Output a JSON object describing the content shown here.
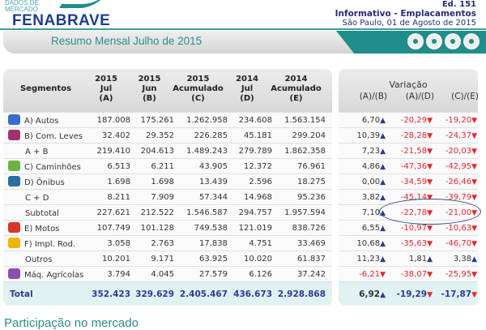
{
  "header": {
    "logo_small": "DADOS DE MERCADO",
    "logo": "FENABRAVE",
    "edition": "Ed. 151",
    "info": "Informativo - Emplacamentos",
    "date": "São Paulo, 01 de Agosto de 2015"
  },
  "band": {
    "title": "Resumo Mensal Julho de 2015"
  },
  "table": {
    "columns": [
      {
        "l1": "Segmentos"
      },
      {
        "l1": "2015",
        "l2": "Jul",
        "l3": "(A)"
      },
      {
        "l1": "2015",
        "l2": "Jun",
        "l3": "(B)"
      },
      {
        "l1": "2015",
        "l2": "Acumulado",
        "l3": "(C)"
      },
      {
        "l1": "2014",
        "l2": "Jul",
        "l3": "(D)"
      },
      {
        "l1": "2014",
        "l2": "Acumulado",
        "l3": "(E)"
      }
    ],
    "rows": [
      {
        "seg": "A) Autos",
        "icon": "car-icon",
        "color": "#3a6ec8",
        "v": [
          "187.008",
          "175.261",
          "1.262.958",
          "234.608",
          "1.563.154"
        ]
      },
      {
        "seg": "B) Com. Leves",
        "icon": "van-icon",
        "color": "#a0336e",
        "v": [
          "32.402",
          "29.352",
          "226.285",
          "45.181",
          "299.204"
        ]
      },
      {
        "seg": "A + B",
        "v": [
          "219.410",
          "204.613",
          "1.489.243",
          "279.789",
          "1.862.358"
        ]
      },
      {
        "seg": "C) Caminhões",
        "icon": "truck-icon",
        "color": "#6db33f",
        "v": [
          "6.513",
          "6.211",
          "43.905",
          "12.372",
          "76.961"
        ]
      },
      {
        "seg": "D) Ônibus",
        "icon": "bus-icon",
        "color": "#2a6fa0",
        "v": [
          "1.698",
          "1.698",
          "13.439",
          "2.596",
          "18.275"
        ]
      },
      {
        "seg": "C + D",
        "v": [
          "8.211",
          "7.909",
          "57.344",
          "14.968",
          "95.236"
        ]
      },
      {
        "seg": "Subtotal",
        "v": [
          "227.621",
          "212.522",
          "1.546.587",
          "294.757",
          "1.957.594"
        ]
      },
      {
        "seg": "E) Motos",
        "icon": "motorcycle-icon",
        "color": "#d9342b",
        "v": [
          "107.749",
          "101.128",
          "749.538",
          "121.019",
          "838.726"
        ]
      },
      {
        "seg": "F) Impl. Rod.",
        "icon": "trailer-icon",
        "color": "#f0b400",
        "v": [
          "3.058",
          "2.763",
          "17.838",
          "4.751",
          "33.469"
        ]
      },
      {
        "seg": "Outros",
        "v": [
          "10.201",
          "9.171",
          "63.925",
          "10.020",
          "61.837"
        ]
      },
      {
        "seg": "Máq. Agrícolas",
        "icon": "tractor-icon",
        "color": "#8a4fb0",
        "v": [
          "3.794",
          "4.045",
          "27.579",
          "6.126",
          "37.242"
        ]
      }
    ],
    "total": {
      "label": "Total",
      "v": [
        "352.423",
        "329.629",
        "2.405.467",
        "436.673",
        "2.928.868"
      ]
    }
  },
  "variation": {
    "title": "Variação",
    "headers": [
      "(A)/(B)",
      "(A)/(D)",
      "(C)/(E)"
    ],
    "rows": [
      [
        "6,70",
        "-20,29",
        "-19,20"
      ],
      [
        "10,39",
        "-28,28",
        "-24,37"
      ],
      [
        "7,23",
        "-21,58",
        "-20,03"
      ],
      [
        "4,86",
        "-47,36",
        "-42,95"
      ],
      [
        "0,00",
        "-34,59",
        "-26,46"
      ],
      [
        "3,82",
        "-45,14",
        "-39,79"
      ],
      [
        "7,10",
        "-22,78",
        "-21,00"
      ],
      [
        "6,55",
        "-10,97",
        "-10,63"
      ],
      [
        "10,68",
        "-35,63",
        "-46,70"
      ],
      [
        "11,23",
        "1,81",
        "3,38"
      ],
      [
        "-6,21",
        "-38,07",
        "-25,95"
      ]
    ],
    "total": [
      "6,92",
      "-19,29",
      "-17,87"
    ],
    "highlighted_row": "Subtotal"
  },
  "bottom": {
    "title": "Participação no mercado"
  },
  "colors": {
    "teal": "#1f8d8a",
    "navy": "#2a3a9a",
    "negative": "#e8252b"
  }
}
